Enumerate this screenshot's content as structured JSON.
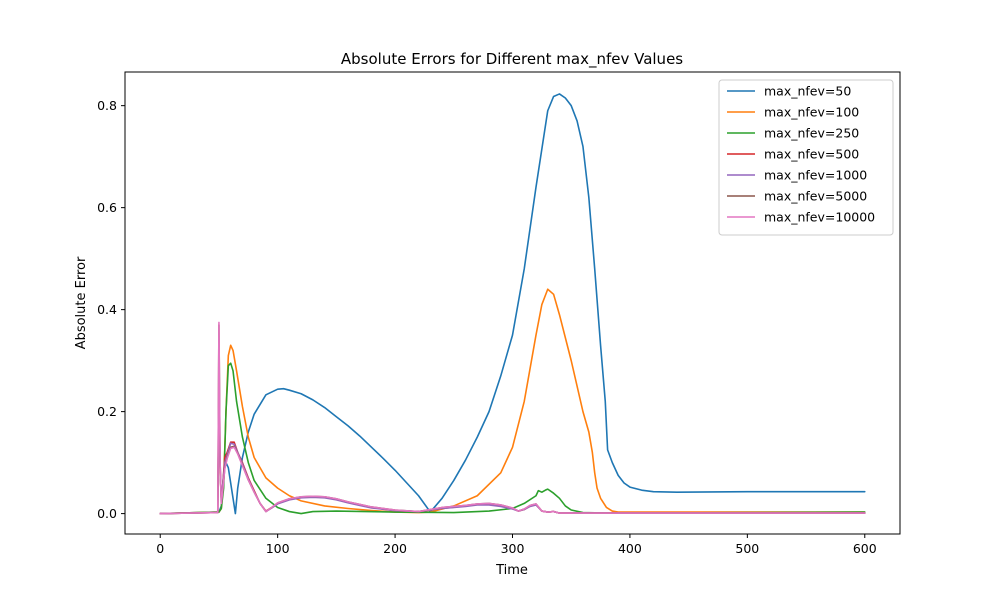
{
  "chart_data": {
    "type": "line",
    "title": "Absolute Errors for Different max_nfev Values",
    "xlabel": "Time",
    "ylabel": "Absolute Error",
    "xlim": [
      -30,
      630
    ],
    "ylim": [
      -0.04,
      0.866
    ],
    "xticks": [
      0,
      100,
      200,
      300,
      400,
      500,
      600
    ],
    "yticks": [
      0.0,
      0.2,
      0.4,
      0.6,
      0.8
    ],
    "xtick_labels": [
      "0",
      "100",
      "200",
      "300",
      "400",
      "500",
      "600"
    ],
    "ytick_labels": [
      "0.0",
      "0.2",
      "0.4",
      "0.6",
      "0.8"
    ],
    "grid": false,
    "legend_position": "top-right",
    "series": [
      {
        "name": "max_nfev=50",
        "color": "#1f77b4",
        "x": [
          0,
          50,
          52,
          55,
          58,
          60,
          62,
          64,
          66,
          70,
          75,
          80,
          90,
          100,
          105,
          110,
          120,
          130,
          140,
          150,
          160,
          170,
          180,
          190,
          200,
          210,
          220,
          230,
          240,
          250,
          260,
          270,
          280,
          290,
          300,
          310,
          320,
          330,
          335,
          340,
          345,
          350,
          355,
          360,
          365,
          370,
          375,
          379,
          381,
          385,
          390,
          395,
          400,
          410,
          420,
          440,
          500,
          600
        ],
        "y": [
          0.0,
          0.003,
          0.015,
          0.105,
          0.09,
          0.06,
          0.03,
          0.0,
          0.05,
          0.11,
          0.16,
          0.195,
          0.233,
          0.244,
          0.245,
          0.242,
          0.235,
          0.223,
          0.208,
          0.19,
          0.172,
          0.152,
          0.13,
          0.108,
          0.085,
          0.06,
          0.035,
          0.003,
          0.03,
          0.065,
          0.105,
          0.15,
          0.2,
          0.27,
          0.35,
          0.48,
          0.64,
          0.79,
          0.818,
          0.823,
          0.815,
          0.8,
          0.77,
          0.72,
          0.62,
          0.48,
          0.33,
          0.22,
          0.125,
          0.1,
          0.075,
          0.06,
          0.052,
          0.046,
          0.043,
          0.042,
          0.043,
          0.043
        ]
      },
      {
        "name": "max_nfev=100",
        "color": "#ff7f0e",
        "x": [
          0,
          50,
          52,
          54,
          56,
          58,
          60,
          62,
          65,
          70,
          75,
          80,
          90,
          100,
          110,
          120,
          140,
          160,
          180,
          200,
          220,
          230,
          250,
          270,
          290,
          300,
          310,
          320,
          325,
          330,
          335,
          340,
          350,
          360,
          365,
          368,
          370,
          372,
          375,
          380,
          385,
          390,
          400,
          420,
          500,
          600
        ],
        "y": [
          0.0,
          0.003,
          0.01,
          0.06,
          0.2,
          0.31,
          0.33,
          0.32,
          0.28,
          0.21,
          0.15,
          0.11,
          0.07,
          0.05,
          0.035,
          0.025,
          0.015,
          0.01,
          0.006,
          0.003,
          0.002,
          0.003,
          0.015,
          0.035,
          0.08,
          0.13,
          0.22,
          0.35,
          0.41,
          0.44,
          0.43,
          0.39,
          0.3,
          0.2,
          0.16,
          0.12,
          0.08,
          0.05,
          0.03,
          0.012,
          0.005,
          0.003,
          0.003,
          0.003,
          0.003,
          0.003
        ]
      },
      {
        "name": "max_nfev=250",
        "color": "#2ca02c",
        "x": [
          0,
          50,
          52,
          54,
          56,
          58,
          60,
          62,
          65,
          70,
          75,
          80,
          90,
          100,
          110,
          120,
          130,
          150,
          200,
          250,
          280,
          300,
          310,
          320,
          322,
          325,
          328,
          330,
          335,
          340,
          345,
          350,
          360,
          380,
          400,
          600
        ],
        "y": [
          0.0,
          0.003,
          0.01,
          0.05,
          0.2,
          0.29,
          0.295,
          0.28,
          0.22,
          0.15,
          0.1,
          0.065,
          0.03,
          0.012,
          0.004,
          0.0,
          0.004,
          0.005,
          0.003,
          0.002,
          0.005,
          0.01,
          0.02,
          0.035,
          0.045,
          0.042,
          0.046,
          0.048,
          0.04,
          0.03,
          0.015,
          0.007,
          0.002,
          0.001,
          0.001,
          0.003
        ]
      },
      {
        "name": "max_nfev=500",
        "color": "#d62728",
        "x": [
          0,
          49,
          50,
          51,
          52,
          53,
          55,
          57,
          60,
          63,
          66,
          70,
          75,
          80,
          85,
          90,
          95,
          100,
          110,
          120,
          130,
          140,
          150,
          160,
          170,
          180,
          200,
          220,
          240,
          260,
          270,
          280,
          290,
          300,
          305,
          310,
          315,
          320,
          325,
          330,
          335,
          340,
          360,
          400,
          600
        ],
        "y": [
          0.0,
          0.002,
          0.26,
          0.08,
          0.03,
          0.05,
          0.11,
          0.12,
          0.14,
          0.14,
          0.12,
          0.1,
          0.07,
          0.045,
          0.02,
          0.005,
          0.012,
          0.02,
          0.028,
          0.032,
          0.033,
          0.032,
          0.028,
          0.022,
          0.017,
          0.012,
          0.006,
          0.004,
          0.01,
          0.015,
          0.018,
          0.018,
          0.015,
          0.01,
          0.005,
          0.008,
          0.015,
          0.018,
          0.005,
          0.003,
          0.004,
          0.001,
          0.001,
          0.001,
          0.001
        ]
      },
      {
        "name": "max_nfev=1000",
        "color": "#9467bd",
        "x": [
          0,
          49,
          50,
          51,
          52,
          53,
          55,
          57,
          60,
          63,
          66,
          70,
          75,
          80,
          85,
          90,
          95,
          100,
          110,
          120,
          130,
          140,
          150,
          160,
          170,
          180,
          200,
          220,
          240,
          260,
          270,
          280,
          290,
          300,
          305,
          310,
          315,
          320,
          325,
          330,
          335,
          340,
          360,
          400,
          600
        ],
        "y": [
          0.0,
          0.002,
          0.25,
          0.09,
          0.03,
          0.05,
          0.1,
          0.115,
          0.138,
          0.136,
          0.12,
          0.098,
          0.068,
          0.043,
          0.02,
          0.004,
          0.011,
          0.019,
          0.027,
          0.031,
          0.032,
          0.031,
          0.027,
          0.021,
          0.016,
          0.011,
          0.006,
          0.004,
          0.01,
          0.014,
          0.017,
          0.017,
          0.014,
          0.009,
          0.005,
          0.008,
          0.014,
          0.017,
          0.005,
          0.003,
          0.004,
          0.001,
          0.001,
          0.001,
          0.001
        ]
      },
      {
        "name": "max_nfev=5000",
        "color": "#8c564b",
        "x": [
          0,
          49,
          50,
          51,
          52,
          53,
          55,
          57,
          60,
          63,
          66,
          70,
          75,
          80,
          85,
          90,
          95,
          100,
          110,
          120,
          130,
          140,
          150,
          160,
          170,
          180,
          200,
          220,
          240,
          260,
          270,
          280,
          290,
          300,
          305,
          310,
          315,
          320,
          325,
          330,
          335,
          340,
          360,
          400,
          600
        ],
        "y": [
          0.0,
          0.002,
          0.37,
          0.1,
          0.02,
          0.04,
          0.09,
          0.11,
          0.13,
          0.132,
          0.118,
          0.095,
          0.066,
          0.042,
          0.02,
          0.004,
          0.012,
          0.021,
          0.029,
          0.033,
          0.034,
          0.033,
          0.029,
          0.023,
          0.018,
          0.013,
          0.007,
          0.004,
          0.012,
          0.016,
          0.019,
          0.02,
          0.017,
          0.011,
          0.005,
          0.009,
          0.016,
          0.019,
          0.005,
          0.003,
          0.004,
          0.001,
          0.001,
          0.001,
          0.001
        ]
      },
      {
        "name": "max_nfev=10000",
        "color": "#e377c2",
        "x": [
          0,
          49,
          50,
          51,
          52,
          53,
          55,
          57,
          60,
          63,
          66,
          70,
          75,
          80,
          85,
          90,
          95,
          100,
          110,
          120,
          130,
          140,
          150,
          160,
          170,
          180,
          200,
          220,
          240,
          260,
          270,
          280,
          290,
          300,
          305,
          310,
          315,
          320,
          325,
          330,
          335,
          340,
          360,
          400,
          600
        ],
        "y": [
          0.0,
          0.002,
          0.375,
          0.1,
          0.02,
          0.04,
          0.088,
          0.108,
          0.128,
          0.13,
          0.117,
          0.094,
          0.066,
          0.042,
          0.02,
          0.004,
          0.012,
          0.021,
          0.029,
          0.033,
          0.034,
          0.033,
          0.029,
          0.023,
          0.018,
          0.013,
          0.007,
          0.004,
          0.012,
          0.016,
          0.019,
          0.02,
          0.017,
          0.011,
          0.005,
          0.009,
          0.016,
          0.019,
          0.005,
          0.003,
          0.004,
          0.001,
          0.001,
          0.001,
          0.001
        ]
      }
    ]
  }
}
